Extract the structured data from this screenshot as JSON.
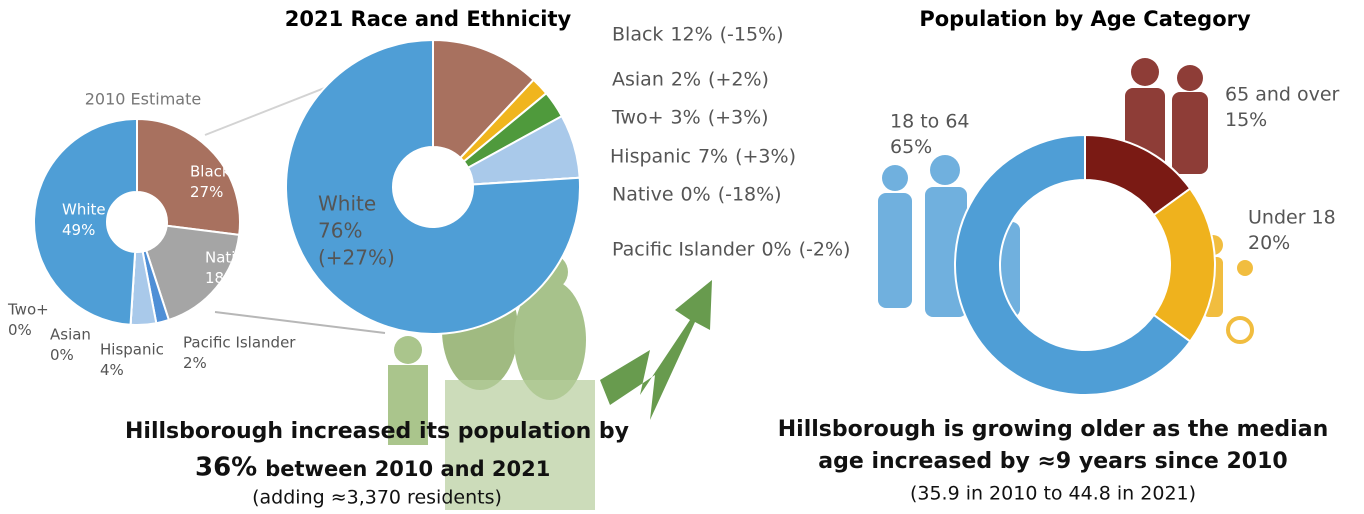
{
  "chart_data": [
    {
      "type": "donut",
      "title": "2010 Estimate",
      "categories": [
        "Black",
        "Native",
        "Pacific Islander",
        "Hispanic",
        "Asian",
        "Two+",
        "White"
      ],
      "values": [
        27,
        18,
        2,
        4,
        0,
        0,
        49
      ],
      "value_labels": [
        "27%",
        "18%",
        "2%",
        "4%",
        "0%",
        "0%",
        "49%"
      ],
      "colors": [
        "#a8715f",
        "#a5a5a5",
        "#4f8fd6",
        "#a9c9ea",
        "#f0b51e",
        "#4f9a3c",
        "#4f9ed6"
      ]
    },
    {
      "type": "donut",
      "title": "2021 Race and Ethnicity",
      "categories": [
        "Black",
        "Asian",
        "Two+",
        "Hispanic",
        "Native",
        "Pacific Islander",
        "White"
      ],
      "values": [
        12,
        2,
        3,
        7,
        0,
        0,
        76
      ],
      "value_labels": [
        "12%",
        "2%",
        "3%",
        "7%",
        "0%",
        "0%",
        "76%"
      ],
      "change_labels": [
        "(-15%)",
        "(+2%)",
        "(+3%)",
        "(+3%)",
        "(-18%)",
        "(-2%)",
        "(+27%)"
      ],
      "colors": [
        "#a8715f",
        "#f0b51e",
        "#4f9a3c",
        "#a9c9ea",
        "#a5a5a5",
        "#4f8fd6",
        "#4f9ed6"
      ],
      "annotations": [
        "Hillsborough increased its population by",
        "36%",
        "between 2010 and 2021",
        "(adding ≈3,370 residents)"
      ]
    },
    {
      "type": "donut",
      "title": "Population by Age Category",
      "categories": [
        "65 and over",
        "Under 18",
        "18 to 64"
      ],
      "values": [
        15,
        20,
        65
      ],
      "value_labels": [
        "15%",
        "20%",
        "65%"
      ],
      "colors": [
        "#7a1a14",
        "#efb21d",
        "#4f9ed6"
      ],
      "annotations": [
        "Hillsborough is growing older as the median",
        "age increased by ≈9 years since 2010",
        "(35.9 in 2010 to 44.8 in 2021)"
      ]
    }
  ]
}
